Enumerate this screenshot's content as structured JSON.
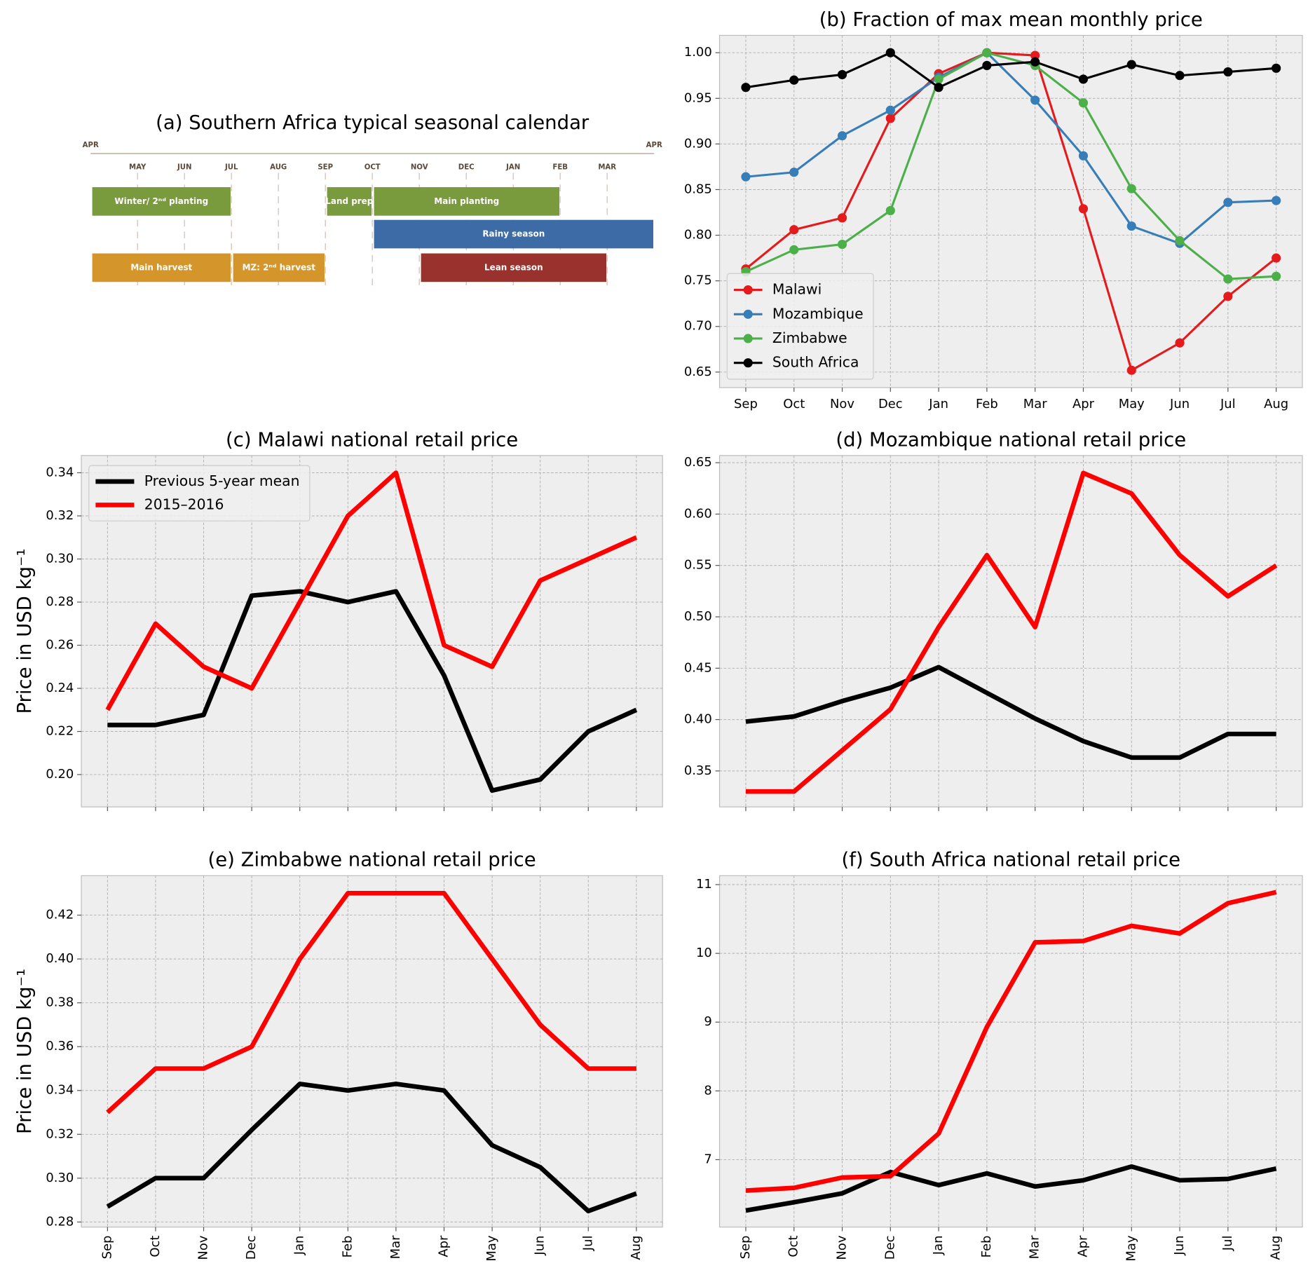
{
  "chart_data": [
    {
      "type": "gantt",
      "title": "(a) Southern Africa typical seasonal calendar",
      "categories": [
        "APR",
        "MAY",
        "JUN",
        "JUL",
        "AUG",
        "SEP",
        "OCT",
        "NOV",
        "DEC",
        "JAN",
        "FEB",
        "MAR",
        "APR"
      ],
      "rows": [
        [
          {
            "label": "Winter/ 2ⁿᵈ planting",
            "start": 0,
            "end": 3,
            "color": "#7a9a3e"
          },
          {
            "label": "Land prep",
            "start": 5,
            "end": 6,
            "color": "#7a9a3e"
          },
          {
            "label": "Main planting",
            "start": 6,
            "end": 10,
            "color": "#7a9a3e"
          }
        ],
        [
          {
            "label": "Rainy season",
            "start": 6,
            "end": 12,
            "color": "#3d6ba5"
          }
        ],
        [
          {
            "label": "Main harvest",
            "start": 0,
            "end": 3,
            "color": "#d4962b"
          },
          {
            "label": "MZ: 2ⁿᵈ harvest",
            "start": 3,
            "end": 5,
            "color": "#d4962b"
          },
          {
            "label": "Lean season",
            "start": 7,
            "end": 11,
            "color": "#99312c"
          }
        ]
      ]
    },
    {
      "type": "line",
      "title": "(b) Fraction of max mean monthly price",
      "markers": true,
      "grid": true,
      "legend": "lower left",
      "categories": [
        "Sep",
        "Oct",
        "Nov",
        "Dec",
        "Jan",
        "Feb",
        "Mar",
        "Apr",
        "May",
        "Jun",
        "Jul",
        "Aug"
      ],
      "ylim": [
        0.633,
        1.019
      ],
      "yticks": [
        0.65,
        {
          "value": 0.7,
          "label": "0.70"
        },
        0.75,
        {
          "value": 0.8,
          "label": "0.80"
        },
        0.85,
        {
          "value": 0.9,
          "label": "0.90"
        },
        0.95,
        {
          "value": 1.0,
          "label": "1.00"
        }
      ],
      "series": [
        {
          "name": "Malawi",
          "color": "#e41a1c",
          "values": [
            0.763,
            0.806,
            0.819,
            0.928,
            0.977,
            1.0,
            0.997,
            0.829,
            0.652,
            0.682,
            0.733,
            0.775
          ]
        },
        {
          "name": "Mozambique",
          "color": "#377eb8",
          "values": [
            0.864,
            0.869,
            0.909,
            0.937,
            0.973,
            1.0,
            0.948,
            0.887,
            0.81,
            0.791,
            0.836,
            0.838
          ]
        },
        {
          "name": "Zimbabwe",
          "color": "#4daf4a",
          "values": [
            0.76,
            0.784,
            0.79,
            0.827,
            0.971,
            1.0,
            0.986,
            0.945,
            0.851,
            0.794,
            0.752,
            0.755
          ]
        },
        {
          "name": "South Africa",
          "color": "#000000",
          "values": [
            0.962,
            0.97,
            0.976,
            1.0,
            0.962,
            0.986,
            0.99,
            0.971,
            0.987,
            0.975,
            0.979,
            0.983
          ]
        }
      ]
    },
    {
      "type": "line",
      "title": "(c) Malawi national retail price",
      "ylabel": "Price in USD kg⁻¹",
      "grid": true,
      "legend": "upper left",
      "categories": [
        null,
        null,
        null,
        null,
        null,
        null,
        null,
        null,
        null,
        null,
        null,
        null
      ],
      "ylim": [
        0.185,
        0.348
      ],
      "yticks": [
        {
          "value": 0.2,
          "label": "0.20"
        },
        0.22,
        0.24,
        0.26,
        0.28,
        {
          "value": 0.3,
          "label": "0.30"
        },
        0.32,
        0.34
      ],
      "series": [
        {
          "name": "Previous 5-year mean",
          "color": "#000000",
          "values": [
            0.223,
            0.223,
            0.2277,
            0.283,
            0.285,
            0.28,
            0.285,
            0.246,
            0.1926,
            0.1977,
            0.22,
            0.23
          ]
        },
        {
          "name": "2015–2016",
          "color": "#ff0000",
          "values": [
            0.23,
            0.27,
            0.25,
            0.24,
            0.28,
            0.32,
            0.34,
            0.26,
            0.25,
            0.29,
            0.3,
            0.31
          ]
        }
      ]
    },
    {
      "type": "line",
      "title": "(d) Mozambique national retail price",
      "grid": true,
      "categories": [
        null,
        null,
        null,
        null,
        null,
        null,
        null,
        null,
        null,
        null,
        null,
        null
      ],
      "ylim": [
        0.315,
        0.657
      ],
      "yticks": [
        0.35,
        {
          "value": 0.4,
          "label": "0.40"
        },
        0.45,
        {
          "value": 0.5,
          "label": "0.50"
        },
        0.55,
        {
          "value": 0.6,
          "label": "0.60"
        },
        0.65
      ],
      "series": [
        {
          "color": "#000000",
          "values": [
            0.398,
            0.403,
            0.418,
            0.431,
            0.451,
            0.426,
            0.401,
            0.379,
            0.363,
            0.363,
            0.386,
            0.386
          ]
        },
        {
          "color": "#ff0000",
          "values": [
            0.33,
            0.33,
            0.37,
            0.41,
            0.49,
            0.56,
            0.49,
            0.64,
            0.62,
            0.56,
            0.52,
            0.55
          ]
        }
      ]
    },
    {
      "type": "line",
      "title": "(e) Zimbabwe national retail price",
      "ylabel": "Price in USD kg⁻¹",
      "grid": true,
      "rotate_xlabels": true,
      "categories": [
        "Sep",
        "Oct",
        "Nov",
        "Dec",
        "Jan",
        "Feb",
        "Mar",
        "Apr",
        "May",
        "Jun",
        "Jul",
        "Aug"
      ],
      "ylim": [
        0.2777,
        0.438
      ],
      "yticks": [
        0.28,
        {
          "value": 0.3,
          "label": "0.30"
        },
        0.32,
        0.34,
        0.36,
        0.38,
        {
          "value": 0.4,
          "label": "0.40"
        },
        0.42
      ],
      "series": [
        {
          "color": "#000000",
          "values": [
            0.287,
            0.3,
            0.3,
            0.322,
            0.343,
            0.34,
            0.343,
            0.34,
            0.315,
            0.305,
            0.285,
            0.293
          ]
        },
        {
          "color": "#ff0000",
          "values": [
            0.33,
            0.35,
            0.35,
            0.36,
            0.4,
            0.43,
            0.43,
            0.43,
            0.4,
            0.37,
            0.35,
            0.35
          ]
        }
      ]
    },
    {
      "type": "line",
      "title": "(f) South Africa national retail price",
      "grid": true,
      "rotate_xlabels": true,
      "categories": [
        "Sep",
        "Oct",
        "Nov",
        "Dec",
        "Jan",
        "Feb",
        "Mar",
        "Apr",
        "May",
        "Jun",
        "Jul",
        "Aug"
      ],
      "ylim": [
        6.02,
        11.13
      ],
      "yticks": [
        7,
        8,
        9,
        10,
        11
      ],
      "series": [
        {
          "color": "#000000",
          "values": [
            6.26,
            6.38,
            6.51,
            6.82,
            6.63,
            6.8,
            6.61,
            6.7,
            6.9,
            6.7,
            6.72,
            6.87
          ]
        },
        {
          "color": "#ff0000",
          "values": [
            6.55,
            6.59,
            6.74,
            6.76,
            7.38,
            8.93,
            10.16,
            10.18,
            10.4,
            10.29,
            10.73,
            10.89
          ]
        }
      ]
    }
  ]
}
